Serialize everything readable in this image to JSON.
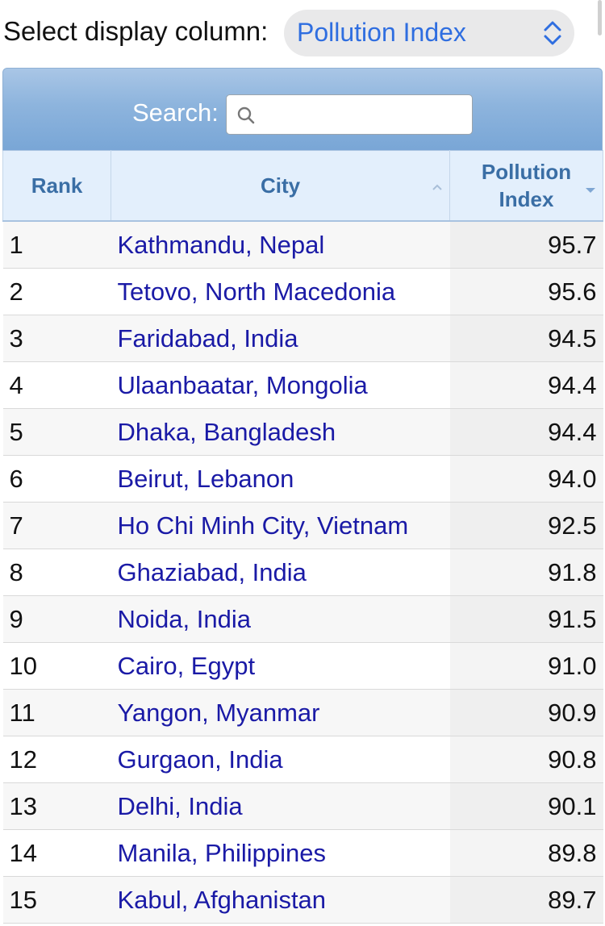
{
  "controls": {
    "select_label": "Select display column:",
    "selected_column": "Pollution Index",
    "search_label": "Search:",
    "search_value": "",
    "search_placeholder": ""
  },
  "table": {
    "headers": {
      "rank": "Rank",
      "city": "City",
      "value_line1": "Pollution",
      "value_line2": "Index"
    },
    "rows": [
      {
        "rank": "1",
        "city": "Kathmandu, Nepal",
        "value": "95.7"
      },
      {
        "rank": "2",
        "city": "Tetovo, North Macedonia",
        "value": "95.6"
      },
      {
        "rank": "3",
        "city": "Faridabad, India",
        "value": "94.5"
      },
      {
        "rank": "4",
        "city": "Ulaanbaatar, Mongolia",
        "value": "94.4"
      },
      {
        "rank": "5",
        "city": "Dhaka, Bangladesh",
        "value": "94.4"
      },
      {
        "rank": "6",
        "city": "Beirut, Lebanon",
        "value": "94.0"
      },
      {
        "rank": "7",
        "city": "Ho Chi Minh City, Vietnam",
        "value": "92.5"
      },
      {
        "rank": "8",
        "city": "Ghaziabad, India",
        "value": "91.8"
      },
      {
        "rank": "9",
        "city": "Noida, India",
        "value": "91.5"
      },
      {
        "rank": "10",
        "city": "Cairo, Egypt",
        "value": "91.0"
      },
      {
        "rank": "11",
        "city": "Yangon, Myanmar",
        "value": "90.9"
      },
      {
        "rank": "12",
        "city": "Gurgaon, India",
        "value": "90.8"
      },
      {
        "rank": "13",
        "city": "Delhi, India",
        "value": "90.1"
      },
      {
        "rank": "14",
        "city": "Manila, Philippines",
        "value": "89.8"
      },
      {
        "rank": "15",
        "city": "Kabul, Afghanistan",
        "value": "89.7"
      }
    ]
  },
  "colors": {
    "link": "#1a1aa6",
    "header_text": "#3a6ea5",
    "select_text": "#2f6ee0"
  },
  "icons": {
    "select": "chevron-up-down-icon",
    "search": "search-icon",
    "sort_city": "sort-ascending-icon",
    "sort_value": "sort-descending-icon"
  }
}
